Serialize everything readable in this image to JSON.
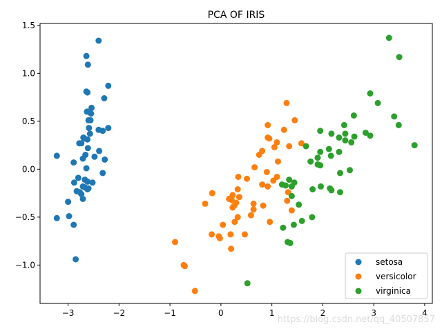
{
  "chart_data": {
    "type": "scatter",
    "title": "PCA OF IRIS",
    "xlabel": "",
    "ylabel": "",
    "xlim": [
      -3.55,
      4.15
    ],
    "ylim": [
      -1.4,
      1.52
    ],
    "xticks": [
      -3,
      -2,
      -1,
      0,
      1,
      2,
      3,
      4
    ],
    "xtick_labels": [
      "−3",
      "−2",
      "−1",
      "0",
      "1",
      "2",
      "3",
      "4"
    ],
    "yticks": [
      -1.0,
      -0.5,
      0.0,
      0.5,
      1.0,
      1.5
    ],
    "ytick_labels": [
      "−1.0",
      "−0.5",
      "0.0",
      "0.5",
      "1.0",
      "1.5"
    ],
    "grid": false,
    "legend_position": "bottom-right",
    "series": [
      {
        "name": "setosa",
        "color": "#1f77b4",
        "points": [
          [
            -2.4,
            1.34
          ],
          [
            -2.64,
            1.18
          ],
          [
            -2.61,
            1.09
          ],
          [
            -2.21,
            0.87
          ],
          [
            -2.64,
            0.81
          ],
          [
            -2.62,
            0.8
          ],
          [
            -2.29,
            0.74
          ],
          [
            -2.54,
            0.64
          ],
          [
            -2.63,
            0.6
          ],
          [
            -2.55,
            0.58
          ],
          [
            -2.56,
            0.51
          ],
          [
            -2.6,
            0.51
          ],
          [
            -2.59,
            0.43
          ],
          [
            -2.21,
            0.43
          ],
          [
            -2.4,
            0.41
          ],
          [
            -2.32,
            0.4
          ],
          [
            -2.57,
            0.37
          ],
          [
            -2.7,
            0.33
          ],
          [
            -2.68,
            0.32
          ],
          [
            -2.62,
            0.31
          ],
          [
            -2.78,
            0.27
          ],
          [
            -2.74,
            0.27
          ],
          [
            -2.61,
            0.22
          ],
          [
            -2.39,
            0.19
          ],
          [
            -2.66,
            0.15
          ],
          [
            -3.22,
            0.14
          ],
          [
            -2.48,
            0.13
          ],
          [
            -2.71,
            0.11
          ],
          [
            -2.28,
            0.1
          ],
          [
            -2.89,
            0.07
          ],
          [
            -2.64,
            0.01
          ],
          [
            -2.32,
            -0.04
          ],
          [
            -2.8,
            -0.09
          ],
          [
            -2.67,
            -0.11
          ],
          [
            -2.62,
            -0.13
          ],
          [
            -2.88,
            -0.14
          ],
          [
            -2.52,
            -0.14
          ],
          [
            -2.71,
            -0.18
          ],
          [
            -2.67,
            -0.19
          ],
          [
            -2.6,
            -0.2
          ],
          [
            -2.62,
            -0.21
          ],
          [
            -2.83,
            -0.23
          ],
          [
            -2.77,
            -0.24
          ],
          [
            -2.74,
            -0.26
          ],
          [
            -2.71,
            -0.31
          ],
          [
            -3.0,
            -0.34
          ],
          [
            -2.98,
            -0.49
          ],
          [
            -3.22,
            -0.51
          ],
          [
            -2.89,
            -0.58
          ],
          [
            -2.85,
            -0.94
          ]
        ]
      },
      {
        "name": "versicolor",
        "color": "#ff7f0e",
        "points": [
          [
            1.29,
            0.69
          ],
          [
            1.45,
            0.51
          ],
          [
            0.92,
            0.46
          ],
          [
            1.24,
            0.41
          ],
          [
            0.92,
            0.33
          ],
          [
            0.95,
            0.32
          ],
          [
            1.1,
            0.28
          ],
          [
            1.58,
            0.27
          ],
          [
            1.34,
            0.24
          ],
          [
            1.05,
            0.23
          ],
          [
            0.81,
            0.19
          ],
          [
            0.75,
            0.15
          ],
          [
            1.12,
            0.08
          ],
          [
            0.66,
            0.02
          ],
          [
            0.9,
            -0.03
          ],
          [
            0.34,
            -0.08
          ],
          [
            1.1,
            -0.08
          ],
          [
            0.51,
            -0.1
          ],
          [
            1.03,
            -0.12
          ],
          [
            0.81,
            -0.16
          ],
          [
            0.92,
            -0.18
          ],
          [
            0.33,
            -0.21
          ],
          [
            1.32,
            -0.24
          ],
          [
            -0.17,
            -0.25
          ],
          [
            0.23,
            -0.27
          ],
          [
            0.36,
            -0.29
          ],
          [
            0.16,
            -0.31
          ],
          [
            0.21,
            -0.32
          ],
          [
            1.3,
            -0.33
          ],
          [
            0.3,
            -0.35
          ],
          [
            0.64,
            -0.36
          ],
          [
            -0.31,
            -0.36
          ],
          [
            0.26,
            -0.38
          ],
          [
            0.83,
            -0.38
          ],
          [
            0.23,
            -0.4
          ],
          [
            0.64,
            -0.42
          ],
          [
            1.39,
            -0.43
          ],
          [
            0.59,
            -0.48
          ],
          [
            0.33,
            -0.5
          ],
          [
            0.27,
            -0.55
          ],
          [
            0.96,
            -0.55
          ],
          [
            0.04,
            -0.58
          ],
          [
            -0.18,
            -0.68
          ],
          [
            0.19,
            -0.68
          ],
          [
            0.47,
            -0.68
          ],
          [
            -0.04,
            -0.7
          ],
          [
            -0.02,
            -0.72
          ],
          [
            -0.9,
            -0.76
          ],
          [
            0.2,
            -0.83
          ],
          [
            -0.73,
            -1.0
          ],
          [
            -0.71,
            -1.01
          ],
          [
            -0.51,
            -1.27
          ]
        ]
      },
      {
        "name": "virginica",
        "color": "#2ca02c",
        "points": [
          [
            3.3,
            1.37
          ],
          [
            3.5,
            1.17
          ],
          [
            2.93,
            0.79
          ],
          [
            3.08,
            0.69
          ],
          [
            2.61,
            0.56
          ],
          [
            3.4,
            0.55
          ],
          [
            2.42,
            0.46
          ],
          [
            3.49,
            0.46
          ],
          [
            2.84,
            0.38
          ],
          [
            2.44,
            0.37
          ],
          [
            2.17,
            0.37
          ],
          [
            1.95,
            0.4
          ],
          [
            2.93,
            0.35
          ],
          [
            2.62,
            0.34
          ],
          [
            2.32,
            0.33
          ],
          [
            2.44,
            0.3
          ],
          [
            2.56,
            0.28
          ],
          [
            3.8,
            0.25
          ],
          [
            1.67,
            0.24
          ],
          [
            2.12,
            0.21
          ],
          [
            2.32,
            0.18
          ],
          [
            1.95,
            0.18
          ],
          [
            2.16,
            0.14
          ],
          [
            1.9,
            0.12
          ],
          [
            1.76,
            0.08
          ],
          [
            1.9,
            0.05
          ],
          [
            1.95,
            0.04
          ],
          [
            2.53,
            -0.01
          ],
          [
            2.34,
            -0.04
          ],
          [
            1.34,
            -0.11
          ],
          [
            1.44,
            -0.14
          ],
          [
            1.2,
            -0.16
          ],
          [
            1.27,
            -0.17
          ],
          [
            1.39,
            -0.18
          ],
          [
            1.96,
            -0.18
          ],
          [
            2.14,
            -0.2
          ],
          [
            1.8,
            -0.21
          ],
          [
            2.17,
            -0.22
          ],
          [
            2.34,
            -0.24
          ],
          [
            1.39,
            -0.28
          ],
          [
            1.53,
            -0.37
          ],
          [
            1.79,
            -0.5
          ],
          [
            1.59,
            -0.54
          ],
          [
            1.43,
            -0.58
          ],
          [
            1.22,
            -0.61
          ],
          [
            1.31,
            -0.76
          ],
          [
            1.36,
            -0.77
          ],
          [
            0.52,
            -1.19
          ]
        ]
      }
    ]
  },
  "watermark": "https://blog.csdn.net/qq_40507857"
}
